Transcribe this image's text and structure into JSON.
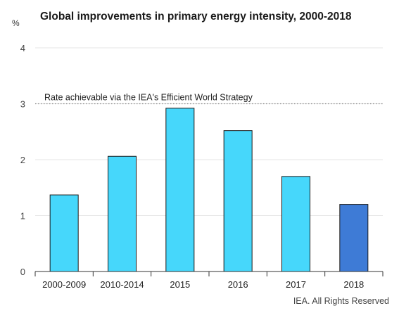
{
  "chart_data": {
    "type": "bar",
    "title": "Global improvements in primary energy intensity, 2000-2018",
    "unit_label": "%",
    "categories": [
      "2000-2009",
      "2010-2014",
      "2015",
      "2016",
      "2017",
      "2018"
    ],
    "values": [
      1.37,
      2.06,
      2.92,
      2.52,
      1.7,
      1.2
    ],
    "bar_colors": [
      "#46d7fb",
      "#46d7fb",
      "#46d7fb",
      "#46d7fb",
      "#46d7fb",
      "#3e7bd6"
    ],
    "ylim": [
      0,
      4
    ],
    "yticks": [
      "0",
      "1",
      "2",
      "3",
      "4"
    ],
    "grid": true,
    "reference_line": {
      "value": 3,
      "label": "Rate achievable via the IEA's Efficient World Strategy",
      "style": "dotted"
    }
  },
  "credit": "IEA. All Rights Reserved",
  "colors": {
    "bar": "#46d7fb",
    "bar_highlight": "#3e7bd6",
    "bar_outline": "#1a1a1a",
    "grid": "#e6e6e6",
    "axis": "#333333"
  }
}
